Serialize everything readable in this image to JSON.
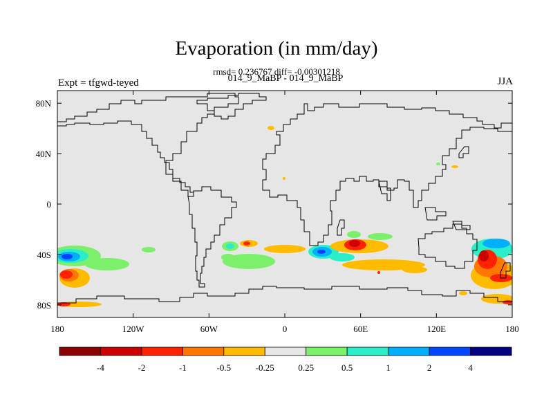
{
  "title": "Evaporation (in mm/day)",
  "stats": "rmsd= 0.236767 diff= -0.00301218",
  "subtitle": "014_9_MaBP - 014_9_MaBP",
  "experiment": "Expt = tfgwd-teyed",
  "season": "JJA",
  "map": {
    "lon_range": [
      -180,
      180
    ],
    "lat_range": [
      -90,
      90
    ],
    "x_ticks": [
      {
        "value": -180,
        "label": "180"
      },
      {
        "value": -120,
        "label": "120W"
      },
      {
        "value": -60,
        "label": "60W"
      },
      {
        "value": 0,
        "label": "0"
      },
      {
        "value": 60,
        "label": "60E"
      },
      {
        "value": 120,
        "label": "120E"
      },
      {
        "value": 180,
        "label": "180"
      }
    ],
    "y_ticks": [
      {
        "value": 80,
        "label": "80N"
      },
      {
        "value": 40,
        "label": "40N"
      },
      {
        "value": 0,
        "label": "0"
      },
      {
        "value": -40,
        "label": "40S"
      },
      {
        "value": -80,
        "label": "80S"
      }
    ],
    "background_color": "#e6e6e6"
  },
  "colorbar": {
    "colors": [
      "#8b0000",
      "#cc0000",
      "#ff2200",
      "#ff7700",
      "#ffbb00",
      "#e6e6e6",
      "#7cf06a",
      "#2aeec8",
      "#00b0ff",
      "#0044ff",
      "#000080"
    ],
    "labels": [
      "-4",
      "-2",
      "-1",
      "-0.5",
      "-0.25",
      "0.25",
      "0.5",
      "1",
      "2",
      "4"
    ]
  }
}
